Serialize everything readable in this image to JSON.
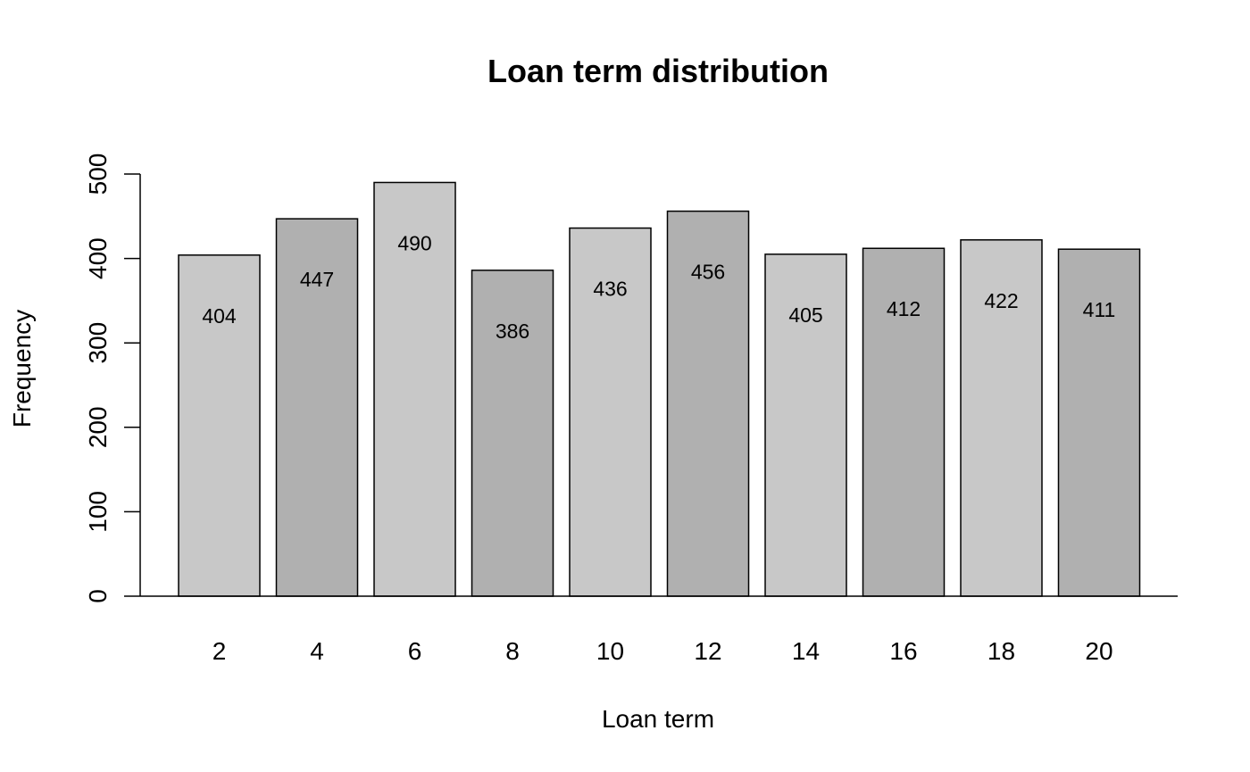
{
  "chart_data": {
    "type": "bar",
    "title": "Loan term distribution",
    "xlabel": "Loan term",
    "ylabel": "Frequency",
    "categories": [
      "2",
      "4",
      "6",
      "8",
      "10",
      "12",
      "14",
      "16",
      "18",
      "20"
    ],
    "values": [
      404,
      447,
      490,
      386,
      436,
      456,
      405,
      412,
      422,
      411
    ],
    "data_labels": [
      "404",
      "447",
      "490",
      "386",
      "436",
      "456",
      "405",
      "412",
      "422",
      "411"
    ],
    "ylim": [
      0,
      500
    ],
    "yticks": [
      0,
      100,
      200,
      300,
      400,
      500
    ],
    "ytick_labels": [
      "0",
      "100",
      "200",
      "300",
      "400",
      "500"
    ],
    "grid": false,
    "legend": "none",
    "bar_colors": [
      "#c8c8c8",
      "#b0b0b0"
    ]
  }
}
